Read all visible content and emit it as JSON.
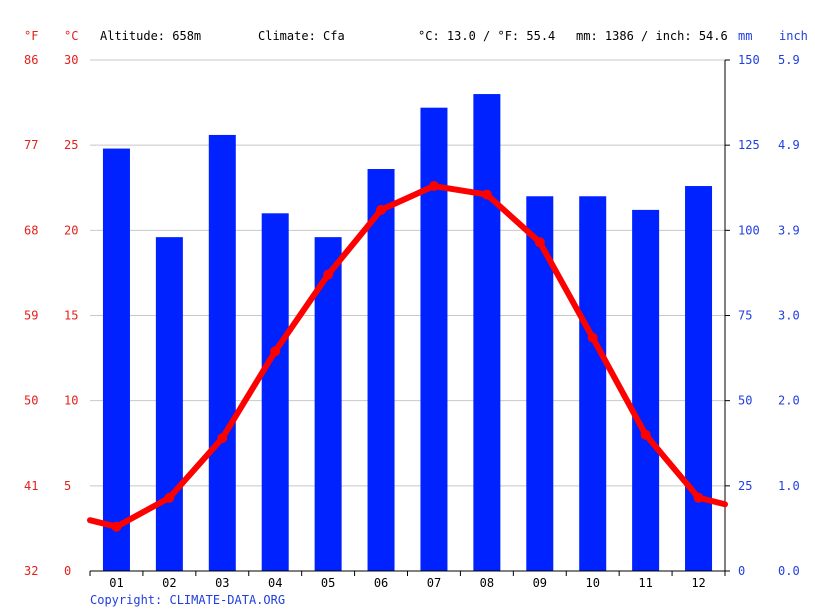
{
  "chart_data": {
    "type": "bar+line",
    "header": {
      "altitude": "Altitude: 658m",
      "climate": "Climate: Cfa",
      "temp_avg": "°C: 13.0 / °F: 55.4",
      "precip_total": "mm: 1386 / inch: 54.6"
    },
    "units": {
      "f": "°F",
      "c": "°C",
      "mm": "mm",
      "inch": "inch"
    },
    "categories": [
      "01",
      "02",
      "03",
      "04",
      "05",
      "06",
      "07",
      "08",
      "09",
      "10",
      "11",
      "12"
    ],
    "y_left_c": {
      "range": [
        0,
        30
      ],
      "ticks": [
        "0",
        "5",
        "10",
        "15",
        "20",
        "25",
        "30"
      ]
    },
    "y_left_f": {
      "ticks": [
        "32",
        "41",
        "50",
        "59",
        "68",
        "77",
        "86"
      ]
    },
    "y_right_mm": {
      "range": [
        0,
        150
      ],
      "ticks": [
        "0",
        "25",
        "50",
        "75",
        "100",
        "125",
        "150"
      ]
    },
    "y_right_inch": {
      "ticks": [
        "0.0",
        "1.0",
        "2.0",
        "3.0",
        "3.9",
        "4.9",
        "5.9"
      ]
    },
    "series": [
      {
        "kind": "bar",
        "unit": "mm",
        "color": "#0022ff",
        "values": [
          124,
          98,
          128,
          105,
          98,
          118,
          136,
          140,
          110,
          110,
          106,
          113
        ]
      },
      {
        "kind": "line",
        "unit": "°C",
        "color": "#ff0000",
        "values": [
          2.6,
          4.3,
          7.8,
          12.9,
          17.4,
          21.2,
          22.6,
          22.1,
          19.3,
          13.7,
          8.0,
          4.3
        ]
      }
    ],
    "grid": true,
    "copyright": "Copyright: CLIMATE-DATA.ORG"
  }
}
